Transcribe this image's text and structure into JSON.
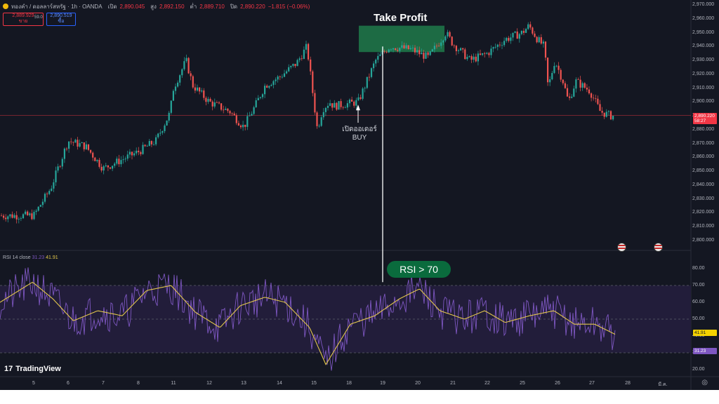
{
  "header": {
    "symbol": "ทองคำ / ดอลลาร์สหรัฐ · 1h · OANDA",
    "ohlc": [
      {
        "k": "เปิด",
        "v": "2,890.045"
      },
      {
        "k": "สูง",
        "v": "2,892.150"
      },
      {
        "k": "ต่ำ",
        "v": "2,889.710"
      },
      {
        "k": "ปิด",
        "v": "2,890.220"
      },
      {
        "k": "",
        "v": "−1.815 (−0.06%)"
      }
    ],
    "sell_price": "2,889.929",
    "sell_label": "ขาย",
    "spread": "59.0",
    "buy_price": "2,890.519",
    "buy_label": "ซื้อ"
  },
  "price_axis": [
    "2,970.000",
    "2,960.000",
    "2,950.000",
    "2,940.000",
    "2,930.000",
    "2,920.000",
    "2,910.000",
    "2,900.000",
    "2,890.000",
    "2,880.000",
    "2,870.000",
    "2,860.000",
    "2,850.000",
    "2,840.000",
    "2,830.000",
    "2,820.000",
    "2,810.000",
    "2,800.000"
  ],
  "last_price_tag": {
    "price": "2,890.220",
    "countdown": "58:27"
  },
  "rsi": {
    "title": "RSI 14 close",
    "rsi_value": "31.23",
    "ma_value": "41.91",
    "axis": [
      "80.00",
      "70.00",
      "60.00",
      "50.00",
      "40.00",
      "30.00",
      "20.00"
    ]
  },
  "time_axis": [
    "5",
    "6",
    "7",
    "8",
    "11",
    "12",
    "13",
    "14",
    "15",
    "18",
    "19",
    "20",
    "21",
    "22",
    "25",
    "26",
    "27",
    "28",
    "มี.ค."
  ],
  "annotations": {
    "take_profit": "Take Profit",
    "buy_line1": "เปิดออเดอร์",
    "buy_line2": "BUY",
    "rsi_callout": "RSI > 70"
  },
  "branding": {
    "logo_text": "TradingView",
    "logo_mark": "17"
  },
  "colors": {
    "background": "#141722",
    "up": "#26a69a",
    "down": "#ef5350",
    "rsi_line": "#7e57c2",
    "rsi_ma": "#e2c64c",
    "take_profit_zone": "#1e7a4a",
    "price_line": "#f23645"
  },
  "chart_data": {
    "type": "candlestick",
    "instrument": "XAUUSD 1h",
    "price_axis_range": [
      2795,
      2972
    ],
    "rsi_axis_range": [
      17,
      84
    ],
    "rsi_bands": [
      70,
      50,
      30
    ],
    "price_path": [
      [
        5,
        2818
      ],
      [
        5.5,
        2838
      ],
      [
        6,
        2872
      ],
      [
        6.5,
        2868
      ],
      [
        7,
        2852
      ],
      [
        7.5,
        2858
      ],
      [
        8,
        2864
      ],
      [
        8.5,
        2872
      ],
      [
        8.9,
        2892
      ],
      [
        9.0,
        2910
      ],
      [
        11.3,
        2930
      ],
      [
        11.5,
        2912
      ],
      [
        12.0,
        2900
      ],
      [
        12.6,
        2893
      ],
      [
        13.0,
        2882
      ],
      [
        13.3,
        2896
      ],
      [
        13.6,
        2912
      ],
      [
        14.0,
        2918
      ],
      [
        14.5,
        2928
      ],
      [
        14.8,
        2940
      ],
      [
        15.0,
        2900
      ],
      [
        15.2,
        2880
      ],
      [
        15.5,
        2895
      ],
      [
        15.9,
        2900
      ],
      [
        16.2,
        2897
      ],
      [
        18.3,
        2900
      ],
      [
        18.5,
        2912
      ],
      [
        18.8,
        2930
      ],
      [
        19.2,
        2940
      ],
      [
        19.8,
        2938
      ],
      [
        20.3,
        2932
      ],
      [
        20.8,
        2950
      ],
      [
        21.0,
        2942
      ],
      [
        21.5,
        2930
      ],
      [
        22.0,
        2935
      ],
      [
        22.5,
        2945
      ],
      [
        23.0,
        2950
      ],
      [
        23.3,
        2955
      ],
      [
        23.7,
        2945
      ],
      [
        24.0,
        2940
      ],
      [
        24.3,
        2910
      ],
      [
        24.8,
        2930
      ],
      [
        25.3,
        2915
      ],
      [
        25.6,
        2900
      ],
      [
        26.0,
        2915
      ],
      [
        26.4,
        2908
      ],
      [
        26.7,
        2893
      ],
      [
        27.0,
        2890
      ]
    ],
    "rsi_ma_path": [
      [
        5,
        60
      ],
      [
        5.8,
        72
      ],
      [
        6.3,
        62
      ],
      [
        6.8,
        49
      ],
      [
        7.4,
        55
      ],
      [
        8.0,
        52
      ],
      [
        8.6,
        67
      ],
      [
        9.2,
        70
      ],
      [
        9.8,
        54
      ],
      [
        10.4,
        45
      ],
      [
        10.9,
        58
      ],
      [
        11.5,
        63
      ],
      [
        12.0,
        60
      ],
      [
        12.6,
        45
      ],
      [
        13.0,
        23
      ],
      [
        13.6,
        47
      ],
      [
        14.2,
        52
      ],
      [
        14.8,
        62
      ],
      [
        15.3,
        68
      ],
      [
        15.8,
        55
      ],
      [
        16.4,
        50
      ],
      [
        16.9,
        55
      ],
      [
        17.4,
        48
      ],
      [
        18.0,
        52
      ],
      [
        18.6,
        55
      ],
      [
        19.1,
        47
      ],
      [
        19.6,
        47
      ],
      [
        20.1,
        41
      ]
    ]
  }
}
